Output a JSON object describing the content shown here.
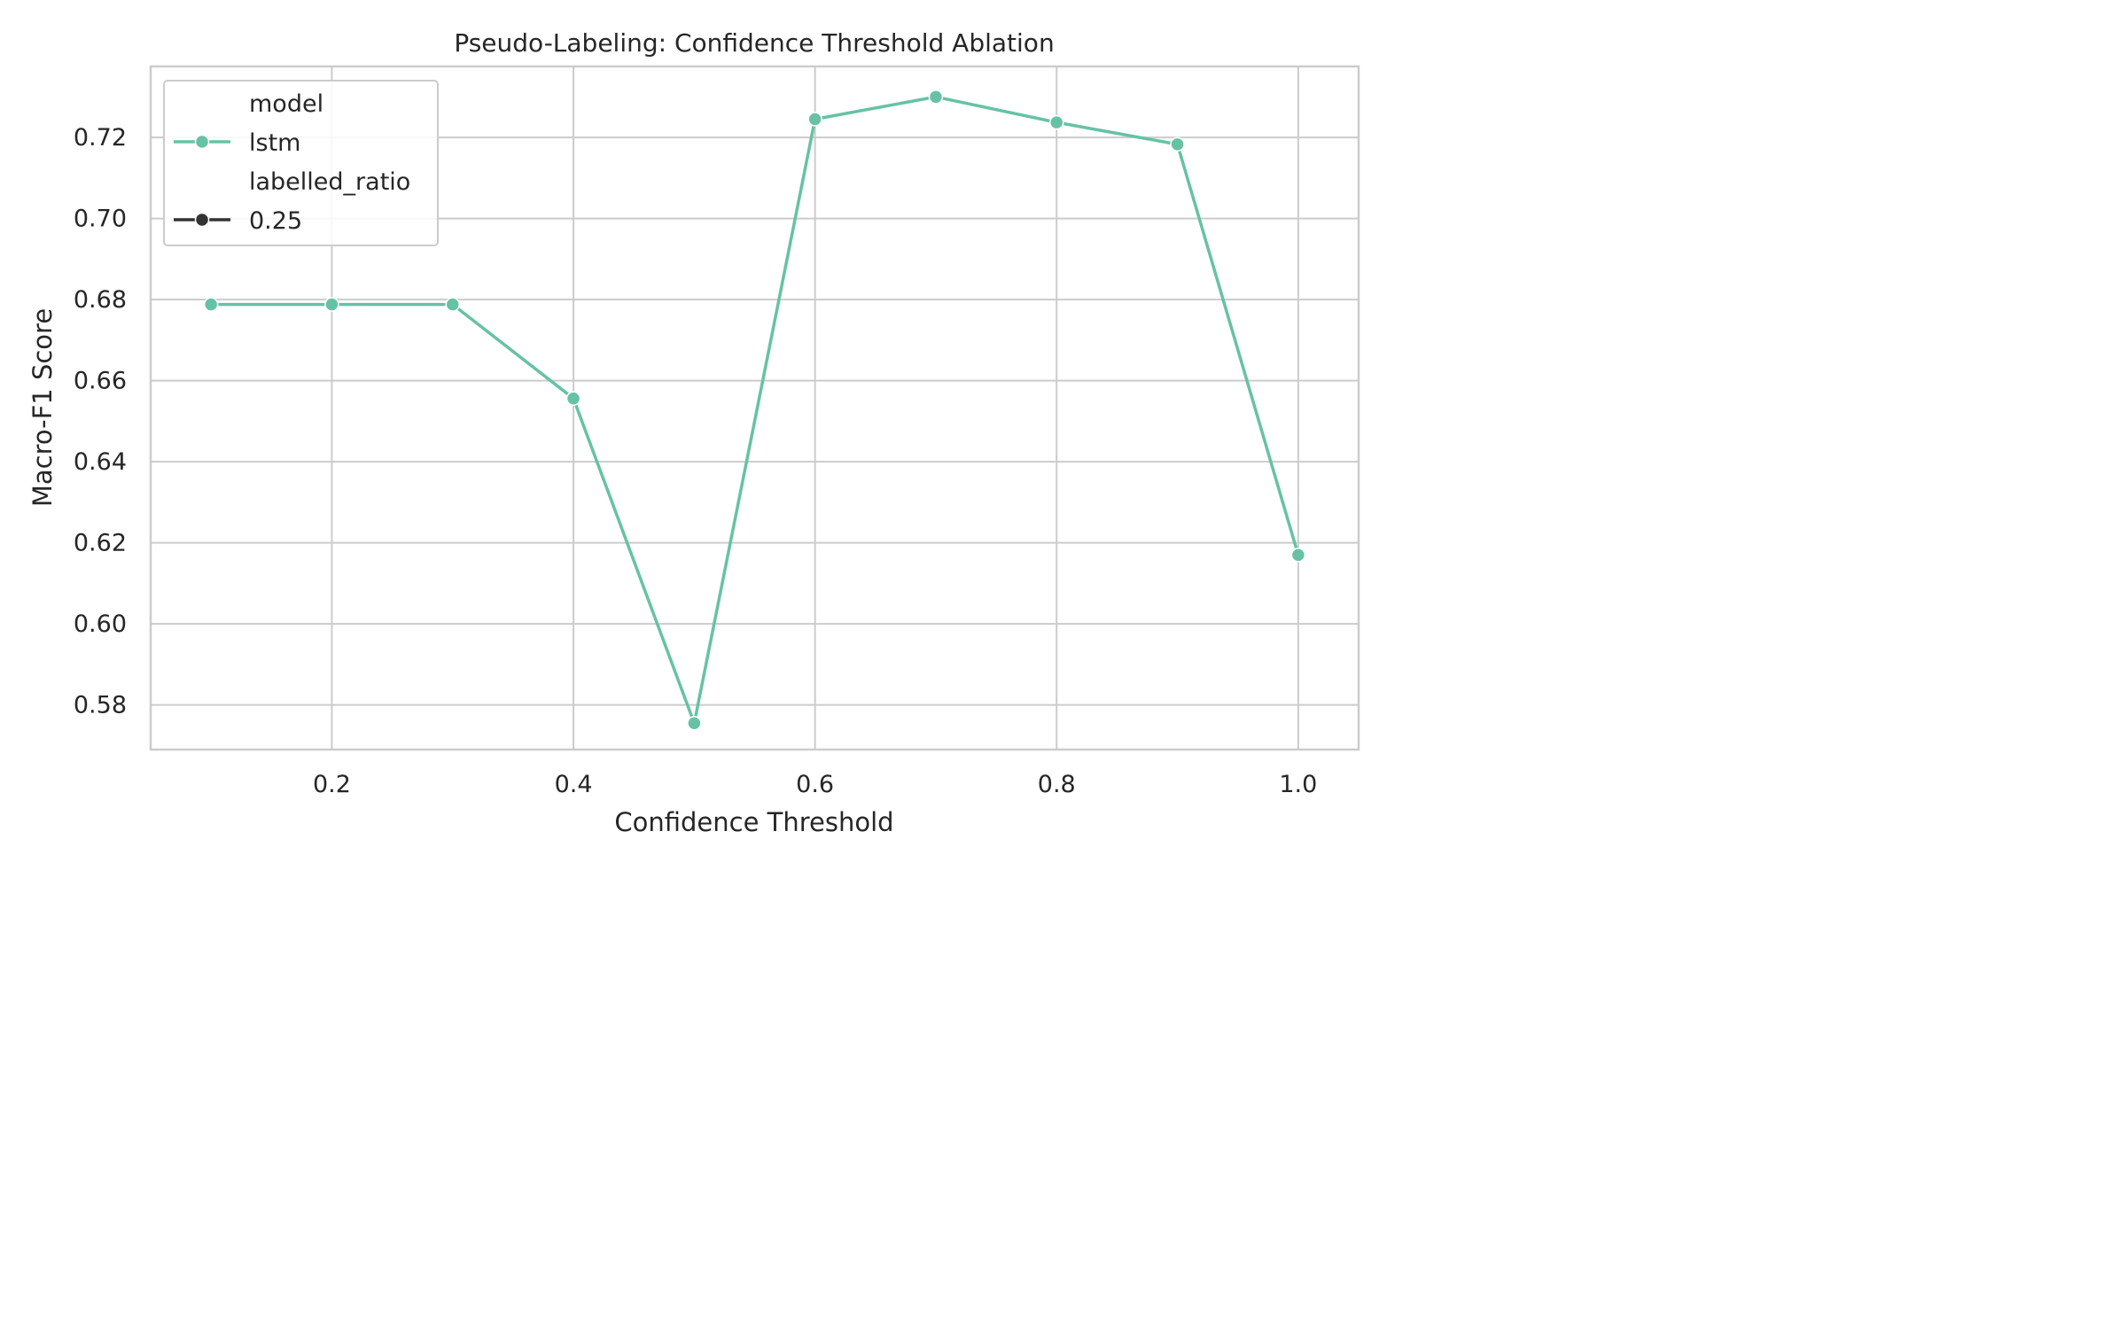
{
  "chart_data": {
    "type": "line",
    "title": "Pseudo-Labeling: Confidence Threshold Ablation",
    "xlabel": "Confidence Threshold",
    "ylabel": "Macro-F1 Score",
    "xlim": [
      0.05,
      1.05
    ],
    "ylim": [
      0.569,
      0.7375
    ],
    "xticks": [
      0.2,
      0.4,
      0.6,
      0.8,
      1.0
    ],
    "xtick_labels": [
      "0.2",
      "0.4",
      "0.6",
      "0.8",
      "1.0"
    ],
    "yticks": [
      0.58,
      0.6,
      0.62,
      0.64,
      0.66,
      0.68,
      0.7,
      0.72
    ],
    "ytick_labels": [
      "0.58",
      "0.60",
      "0.62",
      "0.64",
      "0.66",
      "0.68",
      "0.70",
      "0.72"
    ],
    "grid": true,
    "legend_position": "top-left",
    "legend": {
      "hue_title": "model",
      "hue_entries": [
        {
          "label": "lstm",
          "color": "#66c2a5"
        }
      ],
      "style_title": "labelled_ratio",
      "style_entries": [
        {
          "label": "0.25",
          "color": "#333333"
        }
      ]
    },
    "series": [
      {
        "name": "lstm",
        "color": "#66c2a5",
        "x": [
          0.1,
          0.2,
          0.3,
          0.4,
          0.5,
          0.6,
          0.7,
          0.8,
          0.9,
          1.0
        ],
        "y": [
          0.6788,
          0.6788,
          0.6788,
          0.6556,
          0.5755,
          0.7245,
          0.73,
          0.7237,
          0.7183,
          0.617
        ]
      }
    ]
  }
}
